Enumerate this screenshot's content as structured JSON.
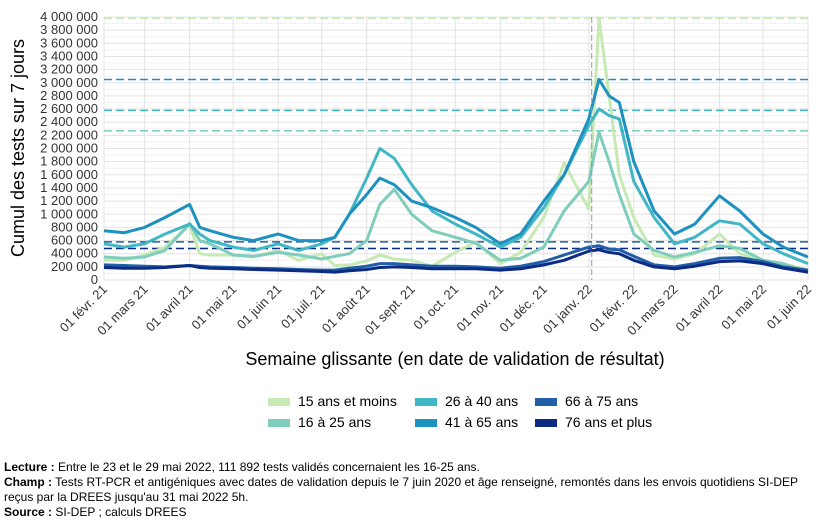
{
  "chart_data": {
    "type": "line",
    "ylabel": "Cumul des tests sur 7 jours",
    "xlabel": "Semaine glissante (en date de validation de résultat)",
    "ylim": [
      0,
      4000000
    ],
    "y_ticks": [
      0,
      200000,
      400000,
      600000,
      800000,
      1000000,
      1200000,
      1400000,
      1600000,
      1800000,
      2000000,
      2200000,
      2400000,
      2600000,
      2800000,
      3000000,
      3200000,
      3400000,
      3600000,
      3800000,
      4000000
    ],
    "y_tick_labels": [
      "0",
      "200 000",
      "400 000",
      "600 000",
      "800 000",
      "1 000 000",
      "1 200 000",
      "1 400 000",
      "1 600 000",
      "1 800 000",
      "2 000 000",
      "2 200 000",
      "2 400 000",
      "2 600 000",
      "2 800 000",
      "3 000 000",
      "3 200 000",
      "3 400 000",
      "3 600 000",
      "3 800 000",
      "4 000 000"
    ],
    "xlim": [
      "2021-02-01",
      "2022-06-01"
    ],
    "x_ticks": [
      "2021-02-01",
      "2021-03-01",
      "2021-04-01",
      "2021-05-01",
      "2021-06-01",
      "2021-07-01",
      "2021-08-01",
      "2021-09-01",
      "2021-10-01",
      "2021-11-01",
      "2021-12-01",
      "2022-01-01",
      "2022-02-01",
      "2022-03-01",
      "2022-04-01",
      "2022-05-01",
      "2022-06-01"
    ],
    "x_tick_labels": [
      "01 févr. 21",
      "01 mars 21",
      "01 avril 21",
      "01 mai 21",
      "01 juin 21",
      "01 juil. 21",
      "01 août 21",
      "01 sept. 21",
      "01 oct. 21",
      "01 nov. 21",
      "01 déc. 21",
      "01 janv. 22",
      "01 févr. 22",
      "01 mars 22",
      "01 avril 22",
      "01 mai 22",
      "01 juin 22"
    ],
    "vline": "2022-01-03",
    "grid": true,
    "legend_position": "bottom",
    "x": [
      "2021-02-01",
      "2021-02-15",
      "2021-03-01",
      "2021-03-15",
      "2021-04-01",
      "2021-04-08",
      "2021-04-15",
      "2021-05-01",
      "2021-05-15",
      "2021-06-01",
      "2021-06-15",
      "2021-07-01",
      "2021-07-10",
      "2021-07-20",
      "2021-08-01",
      "2021-08-10",
      "2021-08-20",
      "2021-09-01",
      "2021-09-15",
      "2021-10-01",
      "2021-10-15",
      "2021-11-01",
      "2021-11-15",
      "2021-12-01",
      "2021-12-15",
      "2022-01-01",
      "2022-01-08",
      "2022-01-15",
      "2022-01-22",
      "2022-02-01",
      "2022-02-15",
      "2022-03-01",
      "2022-03-15",
      "2022-04-01",
      "2022-04-15",
      "2022-05-01",
      "2022-05-15",
      "2022-06-01"
    ],
    "series": [
      {
        "name": "15 ans et moins",
        "color": "#c7e9b4",
        "values": [
          300000,
          300000,
          380000,
          500000,
          830000,
          400000,
          380000,
          380000,
          350000,
          450000,
          300000,
          400000,
          220000,
          230000,
          290000,
          380000,
          320000,
          300000,
          210000,
          420000,
          580000,
          250000,
          420000,
          950000,
          1780000,
          1080000,
          3980000,
          2800000,
          1600000,
          950000,
          380000,
          320000,
          400000,
          700000,
          400000,
          300000,
          250000,
          150000
        ]
      },
      {
        "name": "16 à 25 ans",
        "color": "#7fcdbb",
        "values": [
          350000,
          330000,
          350000,
          450000,
          860000,
          600000,
          550000,
          380000,
          360000,
          420000,
          380000,
          320000,
          360000,
          400000,
          600000,
          1150000,
          1380000,
          1000000,
          750000,
          650000,
          560000,
          300000,
          330000,
          500000,
          1050000,
          1500000,
          2250000,
          1800000,
          1300000,
          700000,
          450000,
          350000,
          420000,
          520000,
          480000,
          300000,
          250000,
          112000
        ]
      },
      {
        "name": "26 à 40 ans",
        "color": "#41b6c4",
        "values": [
          550000,
          500000,
          550000,
          700000,
          850000,
          700000,
          600000,
          500000,
          450000,
          550000,
          450000,
          550000,
          650000,
          1000000,
          1550000,
          2000000,
          1850000,
          1450000,
          1050000,
          850000,
          700000,
          500000,
          650000,
          1100000,
          1600000,
          2350000,
          2600000,
          2500000,
          2450000,
          1500000,
          950000,
          550000,
          650000,
          900000,
          850000,
          550000,
          400000,
          250000
        ]
      },
      {
        "name": "41 à 65 ans",
        "color": "#1d91c0",
        "values": [
          750000,
          720000,
          800000,
          950000,
          1150000,
          800000,
          750000,
          650000,
          600000,
          700000,
          600000,
          600000,
          650000,
          1000000,
          1300000,
          1550000,
          1450000,
          1200000,
          1100000,
          950000,
          800000,
          550000,
          700000,
          1200000,
          1600000,
          2450000,
          3050000,
          2800000,
          2700000,
          1800000,
          1050000,
          700000,
          850000,
          1280000,
          1050000,
          700000,
          500000,
          350000
        ]
      },
      {
        "name": "66 à 75 ans",
        "color": "#225ea8",
        "values": [
          230000,
          220000,
          210000,
          200000,
          220000,
          210000,
          200000,
          190000,
          180000,
          170000,
          160000,
          150000,
          150000,
          180000,
          210000,
          250000,
          250000,
          230000,
          210000,
          210000,
          200000,
          180000,
          210000,
          280000,
          380000,
          500000,
          520000,
          470000,
          460000,
          360000,
          230000,
          200000,
          250000,
          330000,
          340000,
          280000,
          200000,
          150000
        ]
      },
      {
        "name": "76 ans et plus",
        "color": "#0c2c84",
        "values": [
          190000,
          180000,
          180000,
          190000,
          220000,
          190000,
          180000,
          170000,
          160000,
          150000,
          140000,
          130000,
          120000,
          140000,
          160000,
          190000,
          200000,
          190000,
          170000,
          170000,
          170000,
          150000,
          170000,
          230000,
          300000,
          440000,
          460000,
          420000,
          400000,
          300000,
          200000,
          170000,
          210000,
          280000,
          290000,
          250000,
          180000,
          120000
        ]
      }
    ],
    "ref_lines": [
      {
        "value": 3980000,
        "color": "#c7e9b4"
      },
      {
        "value": 3050000,
        "color": "#1d91c0"
      },
      {
        "value": 2580000,
        "color": "#41b6c4"
      },
      {
        "value": 2270000,
        "color": "#7fcdbb"
      },
      {
        "value": 580000,
        "color": "#225ea8"
      },
      {
        "value": 480000,
        "color": "#0c2c84"
      }
    ]
  },
  "notes": {
    "lecture_label": "Lecture :",
    "lecture_text": " Entre le 23 et le 29 mai 2022, 111 892 tests validés concernaient les 16-25 ans.",
    "champ_label": "Champ :",
    "champ_text": " Tests RT-PCR et antigéniques avec dates de validation depuis le 7 juin 2020 et âge renseigné, remontés dans les envois quotidiens SI-DEP reçus par la DREES jusqu'au 31 mai 2022 5h.",
    "source_label": "Source :",
    "source_text": " SI-DEP ; calculs DREES"
  }
}
